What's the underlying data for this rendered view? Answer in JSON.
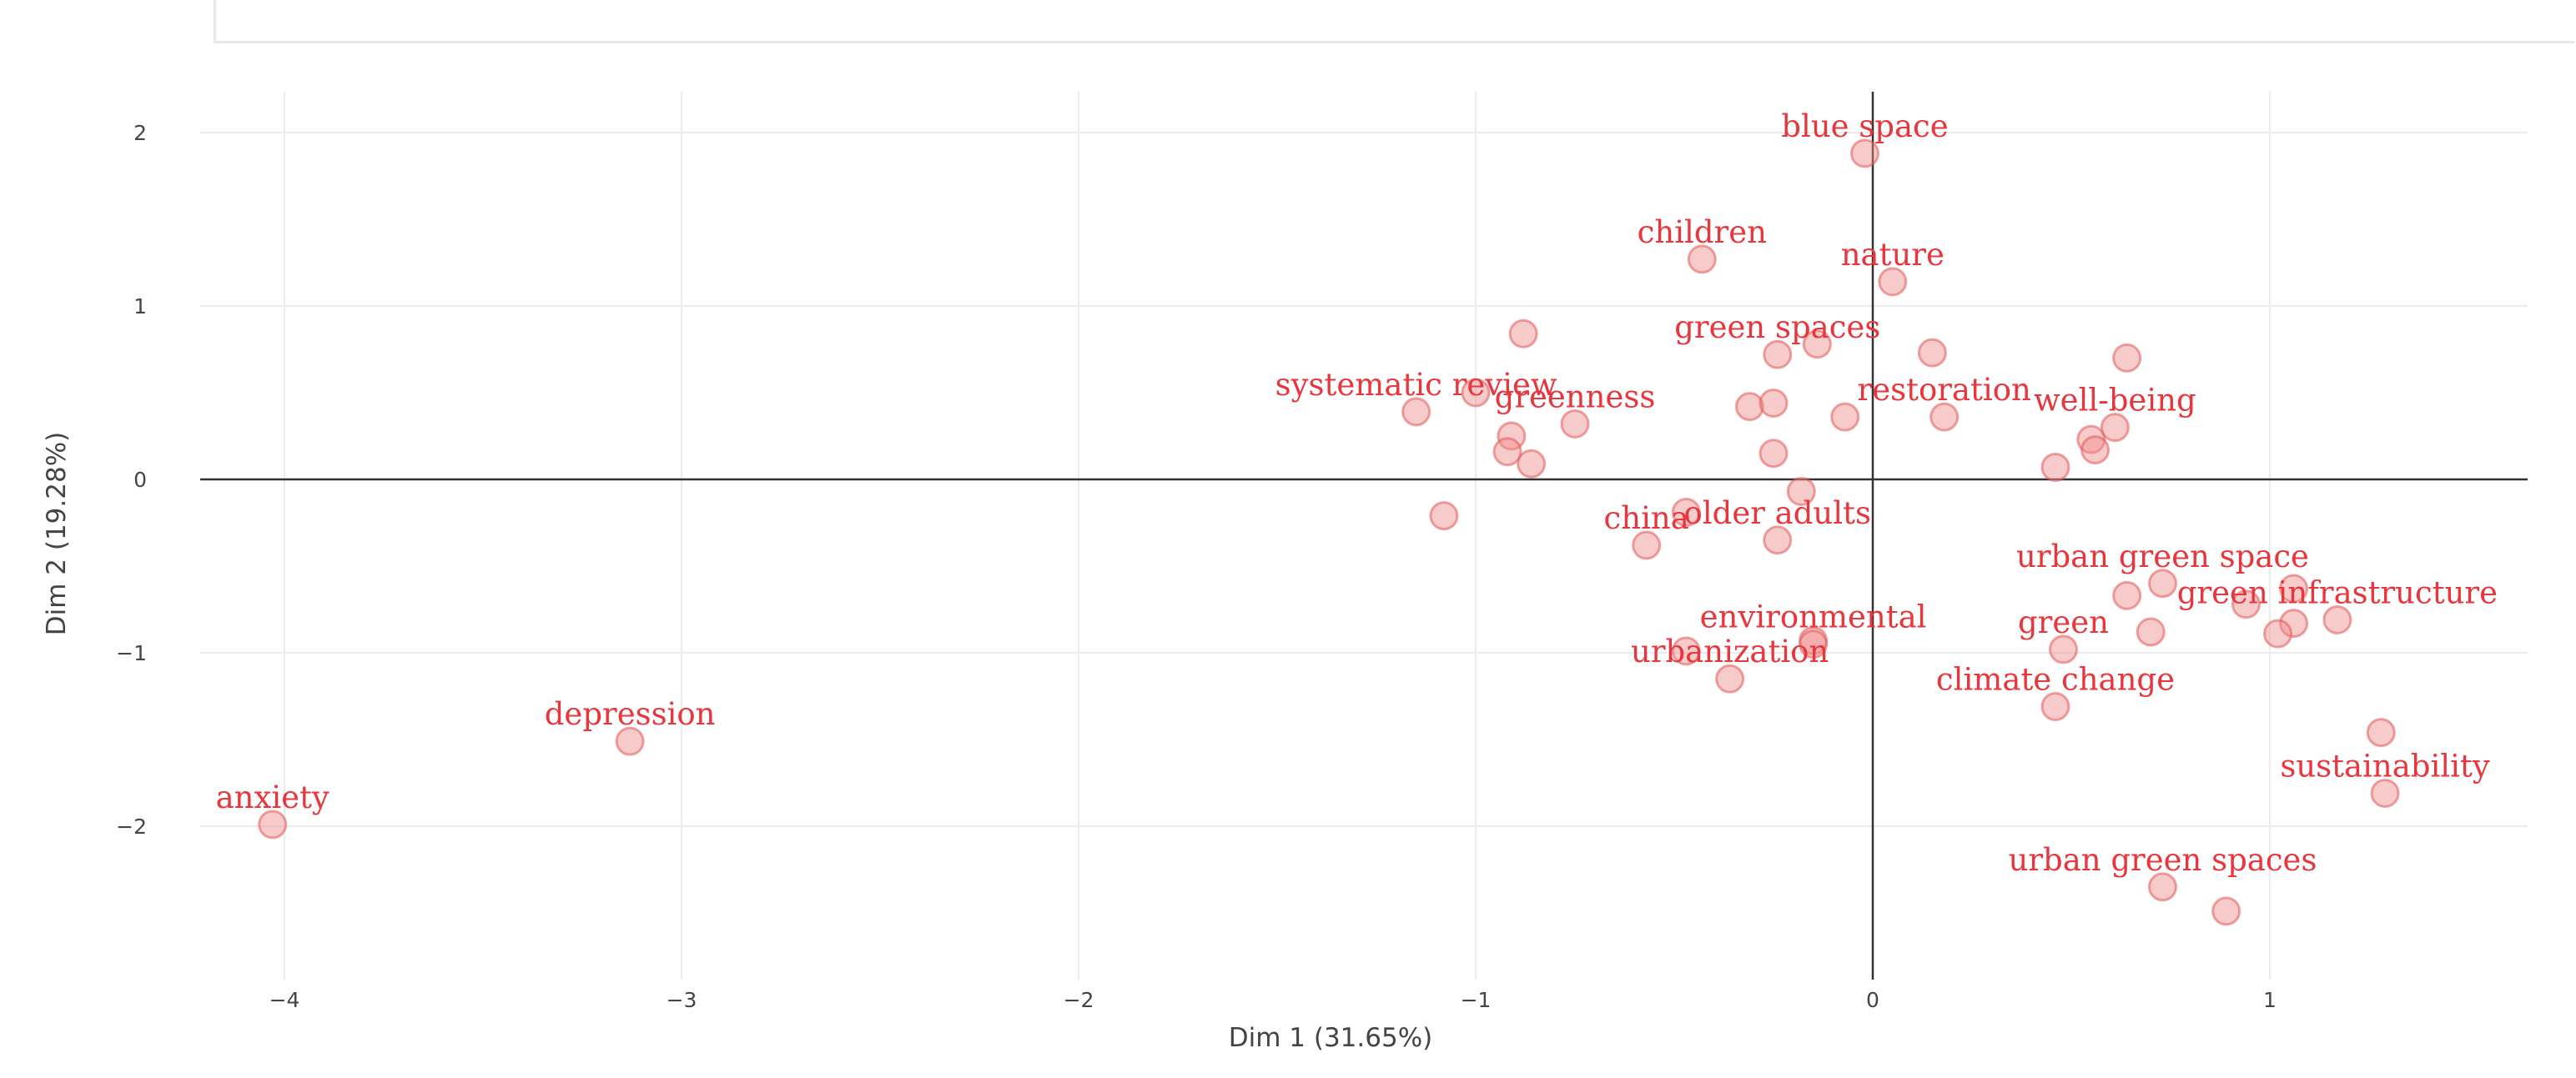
{
  "chart_data": {
    "type": "scatter",
    "xlabel": "Dim 1 (31.65%)",
    "ylabel": "Dim 2 (19.28%)",
    "xlim": [
      -4.4,
      1.65
    ],
    "ylim": [
      -2.85,
      2.2
    ],
    "xticks": [
      -4,
      -3,
      -2,
      -1,
      0,
      1
    ],
    "yticks": [
      -2,
      -1,
      0,
      1,
      2
    ],
    "tick_labels_x": [
      "−4",
      "−3",
      "−2",
      "−1",
      "0",
      "1"
    ],
    "tick_labels_y": [
      "−2",
      "−1",
      "0",
      "1",
      "2"
    ],
    "grid": true,
    "labeled_points": [
      {
        "label": "blue space",
        "x": -0.02,
        "y": 1.88
      },
      {
        "label": "children",
        "x": -0.43,
        "y": 1.27
      },
      {
        "label": "nature",
        "x": 0.05,
        "y": 1.14
      },
      {
        "label": "green spaces",
        "x": -0.24,
        "y": 0.72
      },
      {
        "label": "systematic review",
        "x": -1.15,
        "y": 0.39
      },
      {
        "label": "greenness",
        "x": -0.75,
        "y": 0.32
      },
      {
        "label": "restoration",
        "x": 0.18,
        "y": 0.36
      },
      {
        "label": "well-being",
        "x": 0.61,
        "y": 0.3
      },
      {
        "label": "china",
        "x": -0.57,
        "y": -0.38
      },
      {
        "label": "older adults",
        "x": -0.24,
        "y": -0.35
      },
      {
        "label": "urban green space",
        "x": 0.73,
        "y": -0.6
      },
      {
        "label": "green infrastructure",
        "x": 1.17,
        "y": -0.81
      },
      {
        "label": "environmental",
        "x": -0.15,
        "y": -0.95
      },
      {
        "label": "green",
        "x": 0.48,
        "y": -0.98
      },
      {
        "label": "urbanization",
        "x": -0.36,
        "y": -1.15
      },
      {
        "label": "climate change",
        "x": 0.46,
        "y": -1.31
      },
      {
        "label": "depression",
        "x": -3.13,
        "y": -1.51
      },
      {
        "label": "anxiety",
        "x": -4.03,
        "y": -1.99
      },
      {
        "label": "sustainability",
        "x": 1.29,
        "y": -1.81
      },
      {
        "label": "urban green spaces",
        "x": 0.73,
        "y": -2.35
      }
    ],
    "unlabeled_points": [
      {
        "x": -0.88,
        "y": 0.84
      },
      {
        "x": -1.0,
        "y": 0.5
      },
      {
        "x": -0.91,
        "y": 0.25
      },
      {
        "x": -0.92,
        "y": 0.16
      },
      {
        "x": -0.86,
        "y": 0.09
      },
      {
        "x": -1.08,
        "y": -0.21
      },
      {
        "x": -0.31,
        "y": 0.42
      },
      {
        "x": -0.25,
        "y": 0.44
      },
      {
        "x": -0.14,
        "y": 0.78
      },
      {
        "x": -0.07,
        "y": 0.36
      },
      {
        "x": 0.15,
        "y": 0.73
      },
      {
        "x": -0.25,
        "y": 0.15
      },
      {
        "x": -0.18,
        "y": -0.07
      },
      {
        "x": -0.47,
        "y": -0.19
      },
      {
        "x": 0.64,
        "y": 0.7
      },
      {
        "x": 0.55,
        "y": 0.23
      },
      {
        "x": 0.56,
        "y": 0.17
      },
      {
        "x": 0.46,
        "y": 0.07
      },
      {
        "x": 0.64,
        "y": -0.67
      },
      {
        "x": 0.94,
        "y": -0.72
      },
      {
        "x": 1.06,
        "y": -0.63
      },
      {
        "x": 1.06,
        "y": -0.83
      },
      {
        "x": 1.02,
        "y": -0.89
      },
      {
        "x": 0.7,
        "y": -0.88
      },
      {
        "x": -0.47,
        "y": -0.99
      },
      {
        "x": -0.15,
        "y": -0.93
      },
      {
        "x": 1.28,
        "y": -1.46
      },
      {
        "x": 0.89,
        "y": -2.49
      }
    ],
    "colors": {
      "label": "#e8363c",
      "marker_fill": "rgba(240,140,140,0.45)",
      "marker_stroke": "rgba(225,90,90,0.55)"
    }
  }
}
